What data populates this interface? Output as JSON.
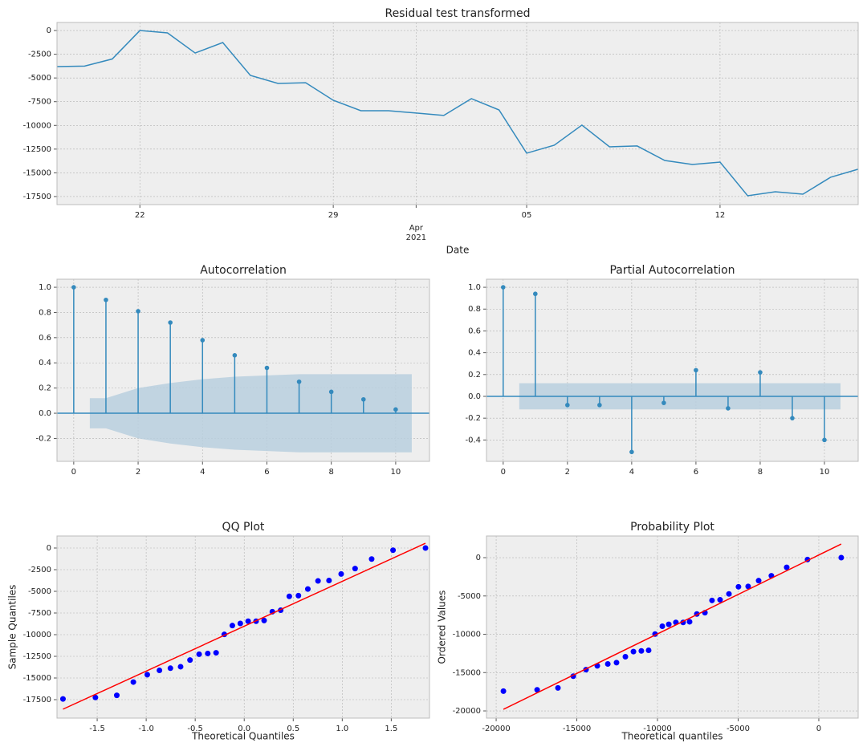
{
  "chart_data": [
    {
      "type": "line",
      "title": "Residual test transformed",
      "xlabel": "Date",
      "color": "#348ABD",
      "grid": true,
      "x": [
        "2021-03-19",
        "2021-03-20",
        "2021-03-21",
        "2021-03-22",
        "2021-03-23",
        "2021-03-24",
        "2021-03-25",
        "2021-03-26",
        "2021-03-27",
        "2021-03-28",
        "2021-03-29",
        "2021-03-30",
        "2021-03-31",
        "2021-04-01",
        "2021-04-02",
        "2021-04-03",
        "2021-04-04",
        "2021-04-05",
        "2021-04-06",
        "2021-04-07",
        "2021-04-08",
        "2021-04-09",
        "2021-04-10",
        "2021-04-11",
        "2021-04-12",
        "2021-04-13",
        "2021-04-14",
        "2021-04-15",
        "2021-04-16",
        "2021-04-17"
      ],
      "values": [
        -3800,
        -3750,
        -3000,
        0,
        -250,
        -2370,
        -1270,
        -4730,
        -5580,
        -5500,
        -7350,
        -8450,
        -8450,
        -8700,
        -8950,
        -7180,
        -8370,
        -12930,
        -12090,
        -9970,
        -12260,
        -12170,
        -13700,
        -14120,
        -13870,
        -17420,
        -17000,
        -17250,
        -15470,
        -14620
      ],
      "xlim": [
        "2021-03-19",
        "2021-04-17"
      ],
      "xticks": [
        {
          "value": "2021-03-22",
          "label": "22"
        },
        {
          "value": "2021-03-29",
          "label": "29"
        },
        {
          "value": "2021-04-01",
          "label": "Apr\n2021"
        },
        {
          "value": "2021-04-05",
          "label": "05"
        },
        {
          "value": "2021-04-12",
          "label": "12"
        }
      ],
      "ylim": [
        -18350,
        850
      ],
      "yticks": [
        0,
        -2500,
        -5000,
        -7500,
        -10000,
        -12500,
        -15000,
        -17500
      ]
    },
    {
      "type": "stem",
      "title": "Autocorrelation",
      "color": "#348ABD",
      "band_color": "#b8cfde",
      "grid": true,
      "x": [
        0,
        1,
        2,
        3,
        4,
        5,
        6,
        7,
        8,
        9,
        10
      ],
      "values": [
        1.0,
        0.9,
        0.81,
        0.72,
        0.58,
        0.46,
        0.36,
        0.25,
        0.17,
        0.11,
        0.03
      ],
      "band": {
        "x": [
          0.5,
          1,
          2,
          3,
          4,
          5,
          6,
          7,
          8,
          9,
          10,
          10.5
        ],
        "upper": [
          0.12,
          0.12,
          0.2,
          0.24,
          0.27,
          0.29,
          0.3,
          0.31,
          0.31,
          0.31,
          0.31,
          0.31
        ],
        "lower": [
          -0.12,
          -0.12,
          -0.2,
          -0.24,
          -0.27,
          -0.29,
          -0.3,
          -0.31,
          -0.31,
          -0.31,
          -0.31,
          -0.31
        ]
      },
      "xlim": [
        -0.52,
        11.05
      ],
      "xticks": [
        0,
        2,
        4,
        6,
        8,
        10
      ],
      "ylim": [
        -0.382,
        1.064
      ],
      "yticks": [
        -0.2,
        {
          "value": 0,
          "label": "0.0"
        },
        0.2,
        0.4,
        0.6,
        0.8,
        {
          "value": 1,
          "label": "1.0"
        }
      ]
    },
    {
      "type": "stem",
      "title": "Partial Autocorrelation",
      "color": "#348ABD",
      "band_color": "#b8cfde",
      "grid": true,
      "x": [
        0,
        1,
        2,
        3,
        4,
        5,
        6,
        7,
        8,
        9,
        10
      ],
      "values": [
        1.0,
        0.94,
        -0.08,
        -0.08,
        -0.51,
        -0.06,
        0.24,
        -0.11,
        0.22,
        -0.2,
        -0.4
      ],
      "band": {
        "x": [
          0.5,
          10.5
        ],
        "upper": [
          0.12,
          0.12
        ],
        "lower": [
          -0.12,
          -0.12
        ]
      },
      "xlim": [
        -0.52,
        11.05
      ],
      "xticks": [
        0,
        2,
        4,
        6,
        8,
        10
      ],
      "ylim": [
        -0.596,
        1.074
      ],
      "yticks": [
        -0.4,
        -0.2,
        {
          "value": 0,
          "label": "0.0"
        },
        0.2,
        0.4,
        0.6,
        0.8,
        {
          "value": 1,
          "label": "1.0"
        }
      ]
    },
    {
      "type": "scatter",
      "title": "QQ Plot",
      "xlabel": "Theoretical Quantiles",
      "ylabel": "Sample Quantiles",
      "color": "#0000ff",
      "grid": true,
      "x": [
        -1.849,
        -1.518,
        -1.3,
        -1.131,
        -0.989,
        -0.865,
        -0.753,
        -0.649,
        -0.553,
        -0.46,
        -0.372,
        -0.287,
        -0.203,
        -0.121,
        -0.04,
        0.04,
        0.121,
        0.203,
        0.287,
        0.372,
        0.46,
        0.553,
        0.649,
        0.753,
        0.865,
        0.989,
        1.131,
        1.3,
        1.518,
        1.849
      ],
      "values": [
        -17420,
        -17250,
        -17000,
        -15470,
        -14620,
        -14120,
        -13870,
        -13700,
        -12930,
        -12260,
        -12170,
        -12090,
        -9970,
        -8950,
        -8700,
        -8450,
        -8450,
        -8370,
        -7350,
        -7180,
        -5580,
        -5500,
        -4730,
        -3800,
        -3750,
        -3000,
        -2370,
        -1270,
        -250,
        0
      ],
      "line": {
        "x": [
          -1.849,
          1.849
        ],
        "values": [
          -18600,
          550
        ],
        "color": "#ff0000"
      },
      "xlim": [
        -1.91,
        1.89
      ],
      "xticks": [
        -1.5,
        {
          "value": -1,
          "label": "-1.0"
        },
        -0.5,
        {
          "value": 0,
          "label": "0.0"
        },
        0.5,
        {
          "value": 1,
          "label": "1.0"
        },
        1.5
      ],
      "ylim": [
        -19630,
        1390
      ],
      "yticks": [
        0,
        -2500,
        -5000,
        -7500,
        -10000,
        -12500,
        -15000,
        -17500
      ]
    },
    {
      "type": "scatter",
      "title": "Probability Plot",
      "xlabel": "Theoretical quantiles",
      "ylabel": "Ordered Values",
      "color": "#0000ff",
      "grid": true,
      "x": [
        -19550,
        -17460,
        -16170,
        -15220,
        -14430,
        -13730,
        -13080,
        -12540,
        -11990,
        -11490,
        -11000,
        -10550,
        -10150,
        -9700,
        -9300,
        -8860,
        -8410,
        -8010,
        -7560,
        -7060,
        -6620,
        -6120,
        -5570,
        -4980,
        -4380,
        -3730,
        -2940,
        -1990,
        -700,
        1390
      ],
      "values": [
        -17420,
        -17250,
        -17000,
        -15470,
        -14620,
        -14120,
        -13870,
        -13700,
        -12930,
        -12260,
        -12170,
        -12090,
        -9970,
        -8950,
        -8700,
        -8450,
        -8450,
        -8370,
        -7350,
        -7180,
        -5580,
        -5500,
        -4730,
        -3800,
        -3750,
        -3000,
        -2370,
        -1270,
        -250,
        0
      ],
      "line": {
        "x": [
          -19550,
          1390
        ],
        "values": [
          -19790,
          1780
        ],
        "color": "#ff0000"
      },
      "xlim": [
        -20600,
        2440
      ],
      "xticks": [
        -20000,
        -15000,
        -10000,
        -5000,
        0
      ],
      "ylim": [
        -20940,
        2830
      ],
      "yticks": [
        0,
        -5000,
        -10000,
        -15000,
        -20000
      ]
    }
  ]
}
